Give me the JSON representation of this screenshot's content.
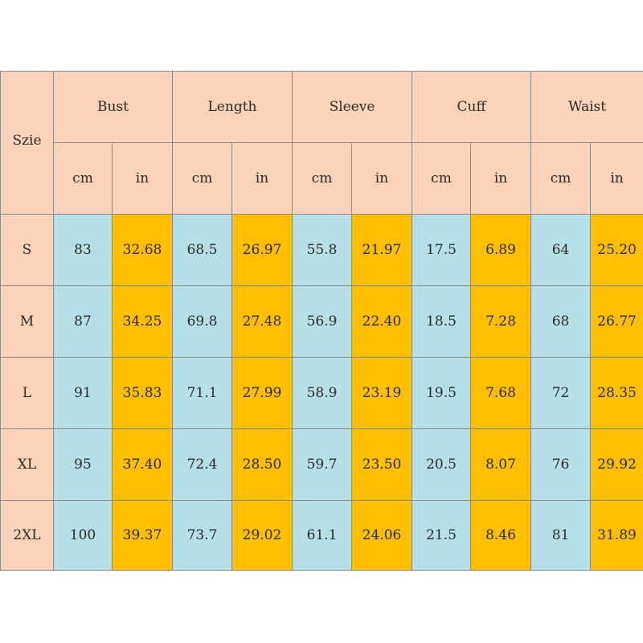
{
  "table": {
    "corner_label": "Szie",
    "measurements": [
      "Bust",
      "Length",
      "Sleeve",
      "Cuff",
      "Waist"
    ],
    "unit_labels": [
      "cm",
      "in"
    ],
    "rows": [
      {
        "size": "S",
        "values": [
          "83",
          "32.68",
          "68.5",
          "26.97",
          "55.8",
          "21.97",
          "17.5",
          "6.89",
          "64",
          "25.20"
        ]
      },
      {
        "size": "M",
        "values": [
          "87",
          "34.25",
          "69.8",
          "27.48",
          "56.9",
          "22.40",
          "18.5",
          "7.28",
          "68",
          "26.77"
        ]
      },
      {
        "size": "L",
        "values": [
          "91",
          "35.83",
          "71.1",
          "27.99",
          "58.9",
          "23.19",
          "19.5",
          "7.68",
          "72",
          "28.35"
        ]
      },
      {
        "size": "XL",
        "values": [
          "95",
          "37.40",
          "72.4",
          "28.50",
          "59.7",
          "23.50",
          "20.5",
          "8.07",
          "76",
          "29.92"
        ]
      },
      {
        "size": "2XL",
        "values": [
          "100",
          "39.37",
          "73.7",
          "29.02",
          "61.1",
          "24.06",
          "21.5",
          "8.46",
          "81",
          "31.89"
        ]
      }
    ]
  },
  "colors": {
    "header": "#fbd3b9",
    "cm_cell": "#b6dfe8",
    "in_cell": "#ffbf00",
    "border": "#8a8a8a"
  }
}
